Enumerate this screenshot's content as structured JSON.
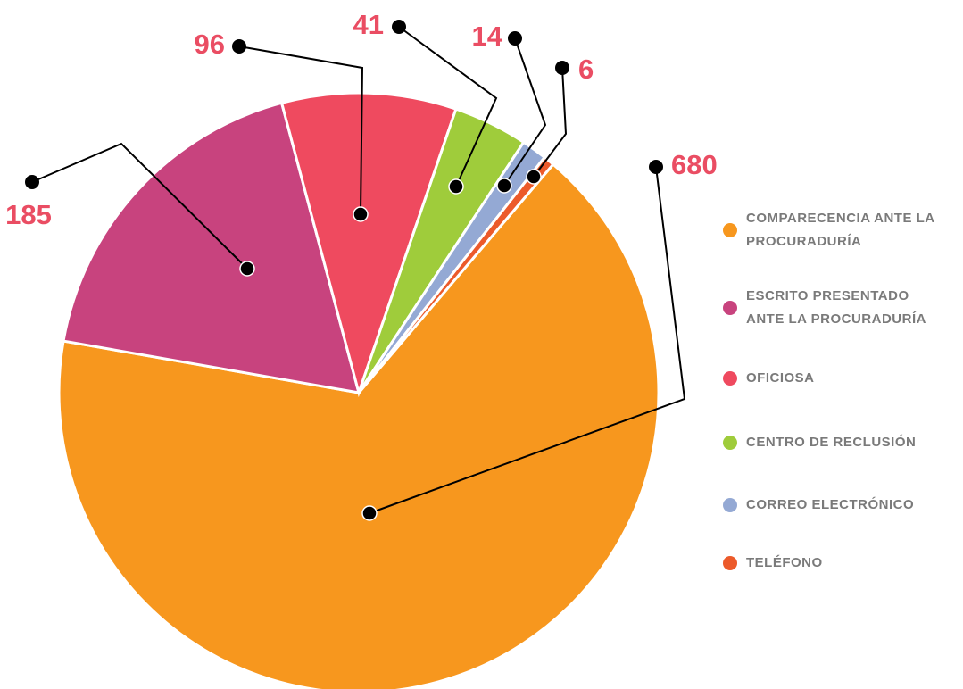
{
  "chart_data": {
    "type": "pie",
    "categories": [
      "COMPARECENCIA ANTE LA PROCURADURÍA",
      "ESCRITO PRESENTADO ANTE LA PROCURADURÍA",
      "OFICIOSA",
      "CENTRO DE RECLUSIÓN",
      "CORREO ELECTRÓNICO",
      "TELÉFONO"
    ],
    "values": [
      680,
      185,
      96,
      41,
      14,
      6
    ],
    "colors": [
      "#f7971e",
      "#c8437e",
      "#ef4a5f",
      "#9fcc3b",
      "#94a9d4",
      "#ec5a2a"
    ],
    "legend": "right"
  }
}
